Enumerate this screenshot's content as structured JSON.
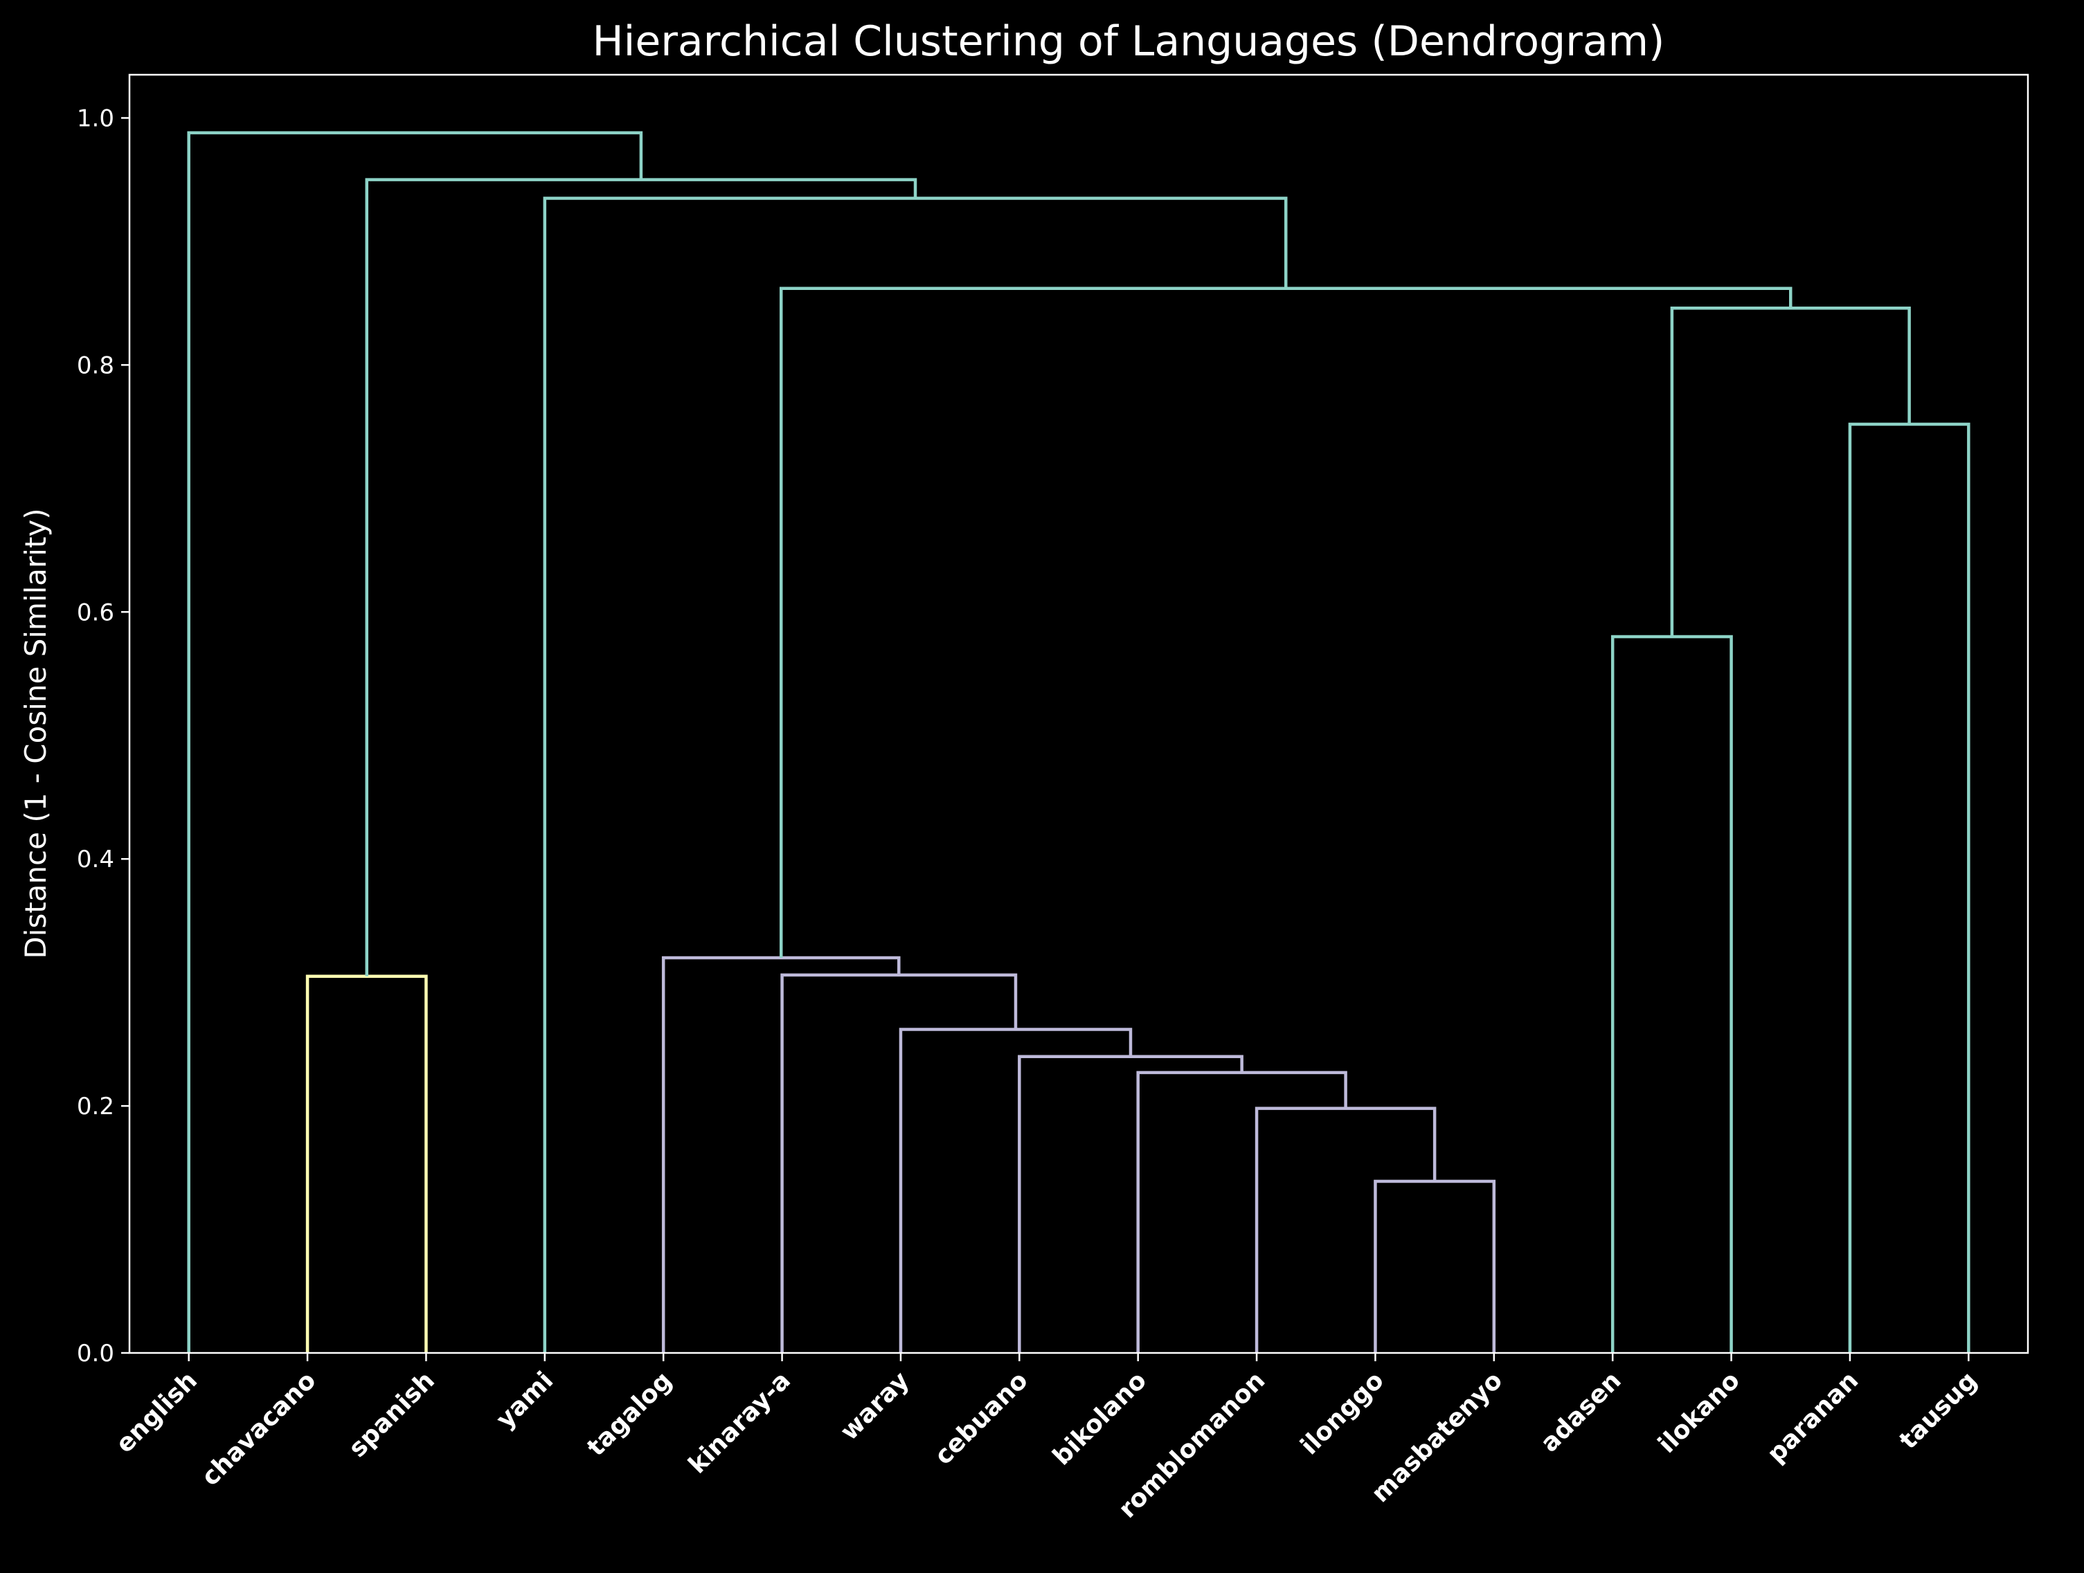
{
  "chart_data": {
    "type": "dendrogram",
    "title": "Hierarchical Clustering of Languages (Dendrogram)",
    "xlabel": "",
    "ylabel": "Distance (1 - Cosine Similarity)",
    "ylim": [
      0,
      1.035
    ],
    "yticks": [
      0.0,
      0.2,
      0.4,
      0.6,
      0.8,
      1.0
    ],
    "ytick_labels": [
      "0.0",
      "0.2",
      "0.4",
      "0.6",
      "0.8",
      "1.0"
    ],
    "grid": false,
    "leaves": [
      "english",
      "chavacano",
      "spanish",
      "yami",
      "tagalog",
      "kinaray-a",
      "waray",
      "cebuano",
      "bikolano",
      "romblomanon",
      "ilonggo",
      "masbatenyo",
      "adasen",
      "ilokano",
      "paranan",
      "tausug"
    ],
    "colors": {
      "background": "#000000",
      "axes": "#ffffff",
      "teal": "#8dd3c7",
      "yellow": "#ffffb3",
      "lavender": "#bebada"
    },
    "links": [
      {
        "left": "chavacano",
        "right": "spanish",
        "height": 0.305,
        "color": "yellow"
      },
      {
        "left": "ilonggo",
        "right": "masbatenyo",
        "height": 0.139,
        "color": "lavender"
      },
      {
        "left": "romblomanon",
        "right": "ilonggo+masbatenyo",
        "height": 0.198,
        "color": "lavender"
      },
      {
        "left": "bikolano",
        "right": "romblomanon+ilonggo+masbatenyo",
        "height": 0.227,
        "color": "lavender"
      },
      {
        "left": "cebuano",
        "right": "bikolano+romblomanon+ilonggo+masbatenyo",
        "height": 0.24,
        "color": "lavender"
      },
      {
        "left": "waray",
        "right": "cebuano+bikolano+romblomanon+ilonggo+masbatenyo",
        "height": 0.262,
        "color": "lavender"
      },
      {
        "left": "kinaray-a",
        "right": "waray+cebuano+bikolano+romblomanon+ilonggo+masbatenyo",
        "height": 0.306,
        "color": "lavender"
      },
      {
        "left": "tagalog",
        "right": "kinaray-a+waray+cebuano+bikolano+romblomanon+ilonggo+masbatenyo",
        "height": 0.32,
        "color": "lavender"
      },
      {
        "left": "adasen",
        "right": "ilokano",
        "height": 0.58,
        "color": "teal"
      },
      {
        "left": "paranan",
        "right": "tausug",
        "height": 0.752,
        "color": "teal"
      },
      {
        "left": "adasen+ilokano",
        "right": "paranan+tausug",
        "height": 0.846,
        "color": "teal"
      },
      {
        "left": "tagalog-cluster",
        "right": "northern-cluster",
        "height": 0.862,
        "color": "teal"
      },
      {
        "left": "yami",
        "right": "philippine-cluster",
        "height": 0.935,
        "color": "teal"
      },
      {
        "left": "chavacano+spanish",
        "right": "yami-cluster",
        "height": 0.95,
        "color": "teal"
      },
      {
        "left": "english",
        "right": "rest",
        "height": 0.988,
        "color": "teal"
      }
    ]
  }
}
